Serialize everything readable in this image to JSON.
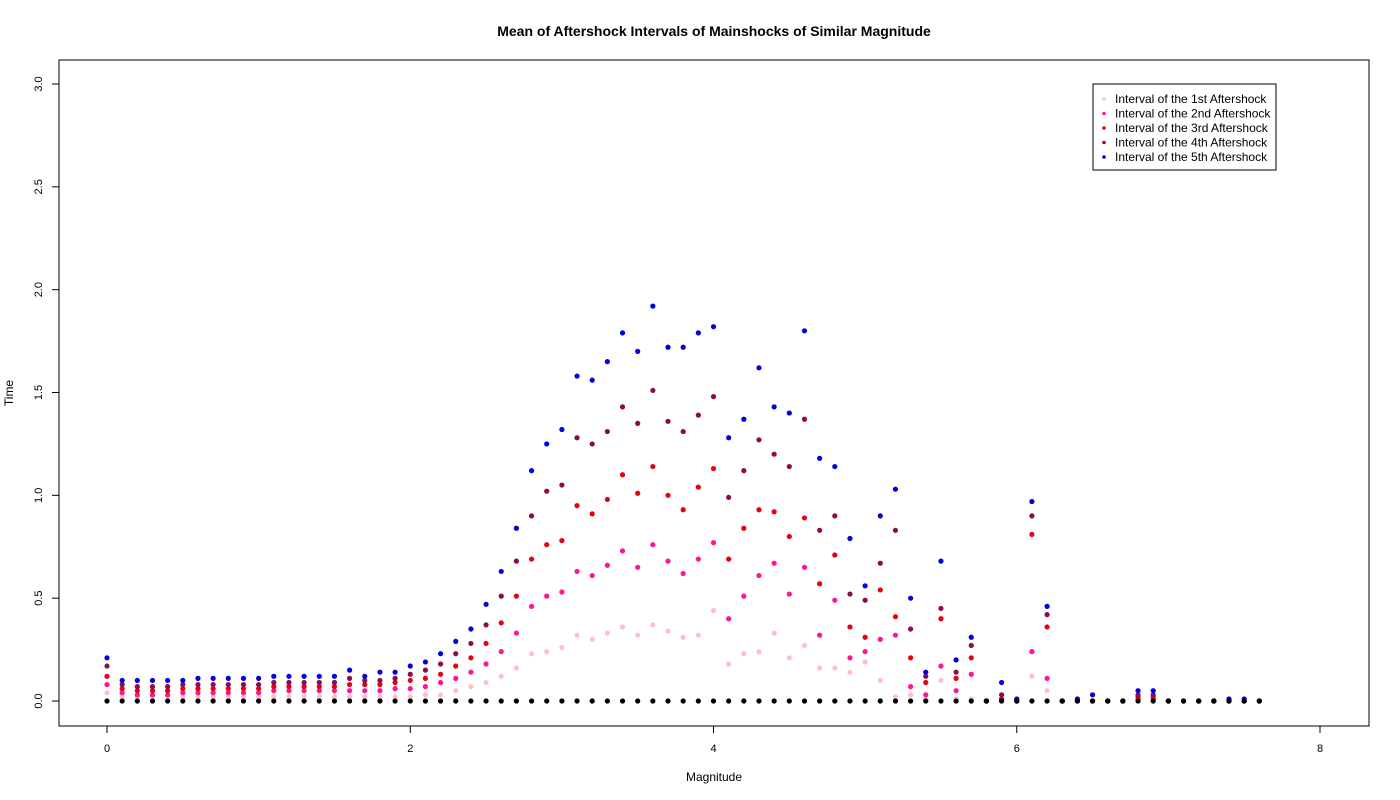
{
  "chart_data": {
    "type": "scatter",
    "title": "Mean of Aftershock Intervals of Mainshocks of Similar Magnitude",
    "xlabel": "Magnitude",
    "ylabel": "Time",
    "xlim": [
      0,
      8
    ],
    "ylim": [
      0,
      3
    ],
    "xticks": [
      "0",
      "2",
      "4",
      "6",
      "8"
    ],
    "yticks": [
      "0.0",
      "0.5",
      "1.0",
      "1.5",
      "2.0",
      "2.5",
      "3.0"
    ],
    "grid": false,
    "legend_position": "top-right",
    "x": [
      0.0,
      0.1,
      0.2,
      0.3,
      0.4,
      0.5,
      0.6,
      0.7,
      0.8,
      0.9,
      1.0,
      1.1,
      1.2,
      1.3,
      1.4,
      1.5,
      1.6,
      1.7,
      1.8,
      1.9,
      2.0,
      2.1,
      2.2,
      2.3,
      2.4,
      2.5,
      2.6,
      2.7,
      2.8,
      2.9,
      3.0,
      3.1,
      3.2,
      3.3,
      3.4,
      3.5,
      3.6,
      3.7,
      3.8,
      3.9,
      4.0,
      4.1,
      4.2,
      4.3,
      4.4,
      4.5,
      4.6,
      4.7,
      4.8,
      4.9,
      5.0,
      5.1,
      5.2,
      5.3,
      5.4,
      5.5,
      5.6,
      5.7,
      5.8,
      5.9,
      6.0,
      6.1,
      6.2,
      6.3,
      6.4,
      6.5,
      6.6,
      6.7,
      6.8,
      6.9,
      7.0,
      7.1,
      7.2,
      7.3,
      7.4,
      7.5,
      7.6
    ],
    "series": [
      {
        "name": "Interval of the 1st Aftershock",
        "color": "#ffc0cb",
        "values": [
          0.04,
          0.02,
          0.02,
          0.02,
          0.02,
          0.02,
          0.02,
          0.02,
          0.02,
          0.02,
          0.02,
          0.02,
          0.02,
          0.02,
          0.02,
          0.02,
          0.02,
          0.02,
          0.02,
          0.02,
          0.02,
          0.03,
          0.03,
          0.05,
          0.07,
          0.09,
          0.12,
          0.16,
          0.23,
          0.24,
          0.26,
          0.32,
          0.3,
          0.33,
          0.36,
          0.32,
          0.37,
          0.34,
          0.31,
          0.32,
          0.44,
          0.18,
          0.23,
          0.24,
          0.33,
          0.21,
          0.27,
          0.16,
          0.16,
          0.14,
          0.19,
          0.1,
          0.02,
          0.03,
          0.01,
          0.1,
          0.01,
          0.01,
          0.0,
          0.0,
          0.0,
          0.12,
          0.05,
          0.0,
          0.0,
          0.0,
          0.0,
          0.0,
          0.01,
          0.01,
          0.0,
          0.0,
          0.0,
          0.0,
          0.0,
          0.0,
          0.0
        ]
      },
      {
        "name": "Interval of the 2nd Aftershock",
        "color": "#ff1493",
        "values": [
          0.08,
          0.04,
          0.03,
          0.03,
          0.03,
          0.04,
          0.04,
          0.04,
          0.04,
          0.04,
          0.04,
          0.05,
          0.05,
          0.05,
          0.05,
          0.05,
          0.05,
          0.05,
          0.05,
          0.06,
          0.06,
          0.07,
          0.09,
          0.11,
          0.14,
          0.18,
          0.24,
          0.33,
          0.46,
          0.51,
          0.53,
          0.63,
          0.61,
          0.66,
          0.73,
          0.65,
          0.76,
          0.68,
          0.62,
          0.69,
          0.77,
          0.4,
          0.51,
          0.61,
          0.67,
          0.52,
          0.65,
          0.32,
          0.49,
          0.21,
          0.24,
          0.3,
          0.32,
          0.07,
          0.03,
          0.17,
          0.05,
          0.13,
          0.0,
          0.01,
          0.0,
          0.24,
          0.11,
          0.0,
          0.0,
          0.0,
          0.0,
          0.0,
          0.01,
          0.01,
          0.0,
          0.0,
          0.0,
          0.0,
          0.0,
          0.0,
          0.0
        ]
      },
      {
        "name": "Interval of the 3rd Aftershock",
        "color": "#e8000d",
        "values": [
          0.12,
          0.06,
          0.05,
          0.05,
          0.05,
          0.06,
          0.06,
          0.06,
          0.06,
          0.06,
          0.06,
          0.07,
          0.07,
          0.07,
          0.07,
          0.07,
          0.08,
          0.08,
          0.08,
          0.09,
          0.1,
          0.11,
          0.13,
          0.17,
          0.21,
          0.28,
          0.38,
          0.51,
          0.69,
          0.76,
          0.78,
          0.95,
          0.91,
          0.98,
          1.1,
          1.01,
          1.14,
          1.0,
          0.93,
          1.04,
          1.13,
          0.69,
          0.84,
          0.93,
          0.92,
          0.8,
          0.89,
          0.57,
          0.71,
          0.36,
          0.31,
          0.54,
          0.41,
          0.21,
          0.09,
          0.4,
          0.11,
          0.21,
          0.0,
          0.01,
          0.0,
          0.81,
          0.36,
          0.0,
          0.0,
          0.0,
          0.0,
          0.0,
          0.02,
          0.02,
          0.0,
          0.0,
          0.0,
          0.0,
          0.0,
          0.0,
          0.0
        ]
      },
      {
        "name": "Interval of the 4th Aftershock",
        "color": "#8b0a50",
        "values": [
          0.17,
          0.08,
          0.07,
          0.07,
          0.07,
          0.08,
          0.08,
          0.08,
          0.08,
          0.08,
          0.08,
          0.09,
          0.09,
          0.09,
          0.09,
          0.09,
          0.11,
          0.1,
          0.1,
          0.11,
          0.13,
          0.15,
          0.18,
          0.23,
          0.28,
          0.37,
          0.51,
          0.68,
          0.9,
          1.02,
          1.05,
          1.28,
          1.25,
          1.31,
          1.43,
          1.35,
          1.51,
          1.36,
          1.31,
          1.39,
          1.48,
          0.99,
          1.12,
          1.27,
          1.2,
          1.14,
          1.37,
          0.83,
          0.9,
          0.52,
          0.49,
          0.67,
          0.83,
          0.35,
          0.12,
          0.45,
          0.14,
          0.27,
          0.0,
          0.03,
          0.0,
          0.9,
          0.42,
          0.0,
          0.0,
          0.0,
          0.0,
          0.0,
          0.03,
          0.03,
          0.0,
          0.0,
          0.0,
          0.0,
          0.0,
          0.0,
          0.0
        ]
      },
      {
        "name": "Interval of the 5th Aftershock",
        "color": "#0000e0",
        "values": [
          0.21,
          0.1,
          0.1,
          0.1,
          0.1,
          0.1,
          0.11,
          0.11,
          0.11,
          0.11,
          0.11,
          0.12,
          0.12,
          0.12,
          0.12,
          0.12,
          0.15,
          0.12,
          0.14,
          0.14,
          0.17,
          0.19,
          0.23,
          0.29,
          0.35,
          0.47,
          0.63,
          0.84,
          1.12,
          1.25,
          1.32,
          1.58,
          1.56,
          1.65,
          1.79,
          1.7,
          1.92,
          1.72,
          1.72,
          1.79,
          1.82,
          1.28,
          1.37,
          1.62,
          1.43,
          1.4,
          1.8,
          1.18,
          1.14,
          0.79,
          0.56,
          0.9,
          1.03,
          0.5,
          0.14,
          0.68,
          0.2,
          0.31,
          0.0,
          0.09,
          0.01,
          0.97,
          0.46,
          0.0,
          0.01,
          0.03,
          0.0,
          0.0,
          0.05,
          0.05,
          0.0,
          0.0,
          0.0,
          0.0,
          0.01,
          0.01,
          0.0
        ]
      },
      {
        "name": "",
        "color": "#000000",
        "values": [
          0,
          0,
          0,
          0,
          0,
          0,
          0,
          0,
          0,
          0,
          0,
          0,
          0,
          0,
          0,
          0,
          0,
          0,
          0,
          0,
          0,
          0,
          0,
          0,
          0,
          0,
          0,
          0,
          0,
          0,
          0,
          0,
          0,
          0,
          0,
          0,
          0,
          0,
          0,
          0,
          0,
          0,
          0,
          0,
          0,
          0,
          0,
          0,
          0,
          0,
          0,
          0,
          0,
          0,
          0,
          0,
          0,
          0,
          0,
          0,
          0,
          0,
          0,
          0,
          0,
          0,
          0,
          0,
          0,
          0,
          0,
          0,
          0,
          0,
          0,
          0,
          0
        ]
      }
    ]
  }
}
